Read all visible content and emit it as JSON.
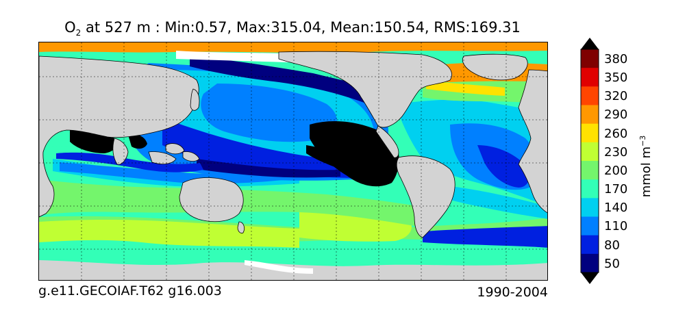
{
  "title": {
    "variable": "O",
    "subscript": "2",
    "rest": " at 527 m : Min:0.57, Max:315.04, Mean:150.54, RMS:169.31"
  },
  "caption_left": "g.e11.GECOIAF.T62 g16.003",
  "caption_right": "1990-2004",
  "colorbar": {
    "unit_base": "mmol m",
    "unit_exp": "−3",
    "tick_labels": [
      "380",
      "350",
      "320",
      "290",
      "260",
      "230",
      "200",
      "170",
      "140",
      "110",
      "80",
      "50"
    ],
    "colors_top_to_bottom": [
      "#7f0000",
      "#e00000",
      "#ff4500",
      "#ff9800",
      "#ffe200",
      "#c0ff33",
      "#74f56c",
      "#33ffb7",
      "#00d0f0",
      "#0080ff",
      "#0020e0",
      "#00007f"
    ]
  },
  "colors": {
    "land": "#d3d3d3",
    "ice": "#ffffff",
    "oxygen_minimum": "#000000"
  }
}
